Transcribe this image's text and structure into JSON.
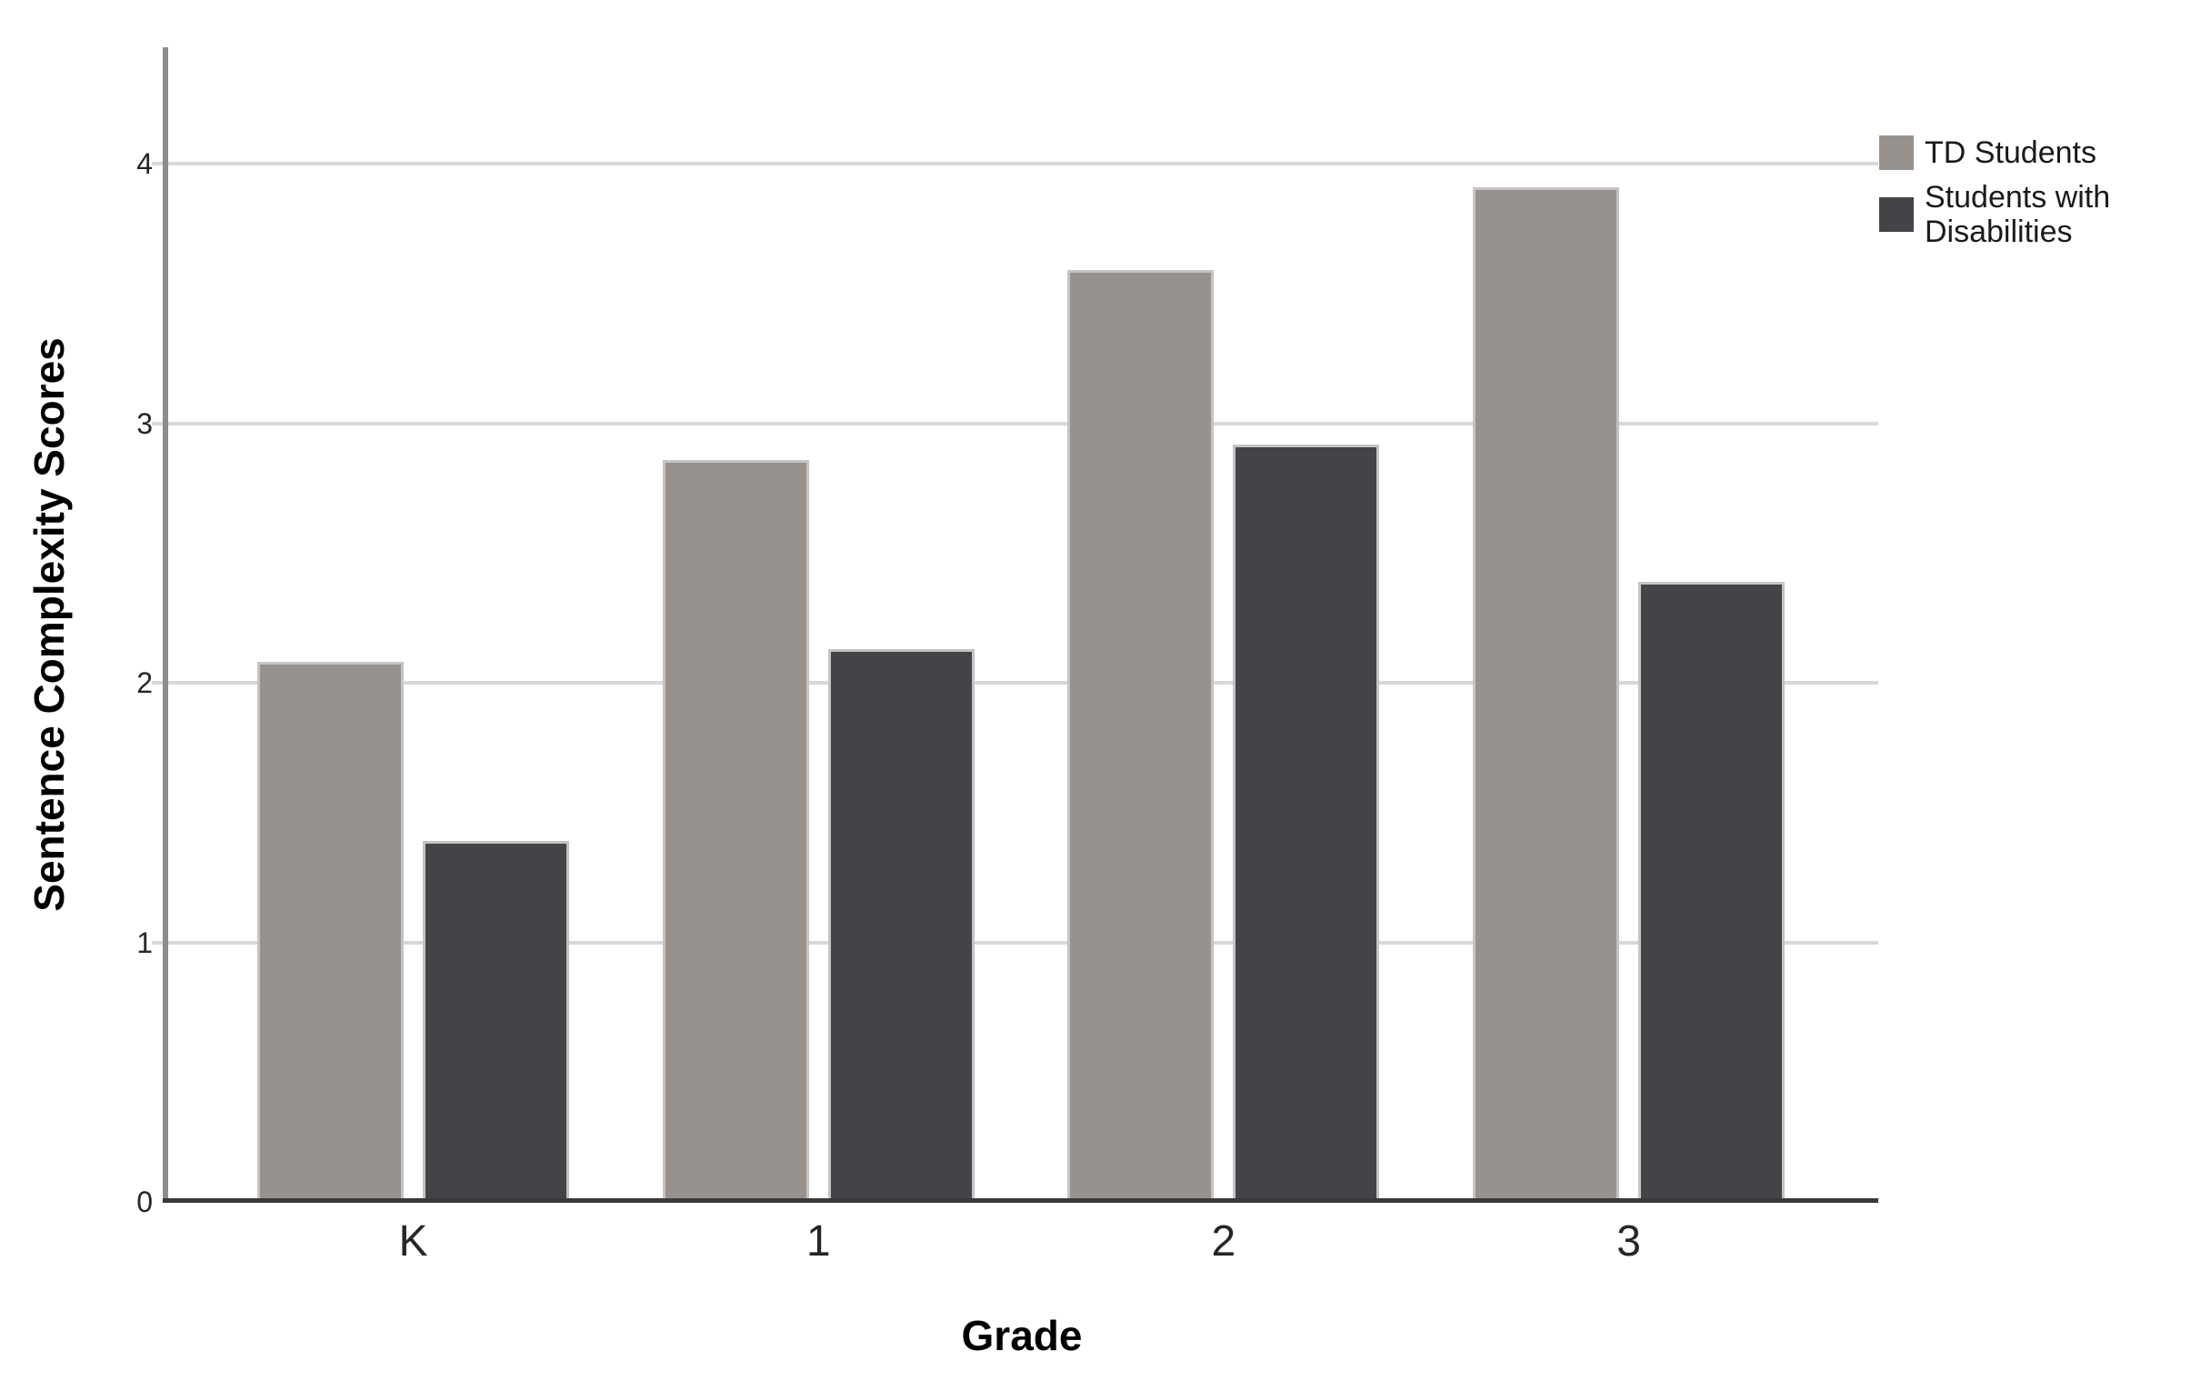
{
  "chart_data": {
    "type": "bar",
    "title": "",
    "categories": [
      "K",
      "1",
      "2",
      "3"
    ],
    "series": [
      {
        "name": "TD Students",
        "color": "#98928F",
        "values": [
          2.08,
          2.86,
          3.59,
          3.91
        ]
      },
      {
        "name": "Students with Disabilities",
        "color": "#424448",
        "values": [
          1.39,
          2.13,
          2.92,
          2.39
        ]
      }
    ],
    "xlabel": "Grade",
    "ylabel": "Sentence Complexity Scores",
    "ylim": [
      0,
      4.45
    ],
    "yticks": [
      "0",
      "1",
      "2",
      "3",
      "4"
    ],
    "grid": true,
    "legend_position": "top-right",
    "colors": {
      "gridline": "#d8d8d8",
      "y_axis_line": "#8c8c8c",
      "x_baseline": "#39393b",
      "bar_border": "#c6c3c2",
      "tick_text": "#262626",
      "title_text": "#000000",
      "background": "#ffffff"
    }
  }
}
